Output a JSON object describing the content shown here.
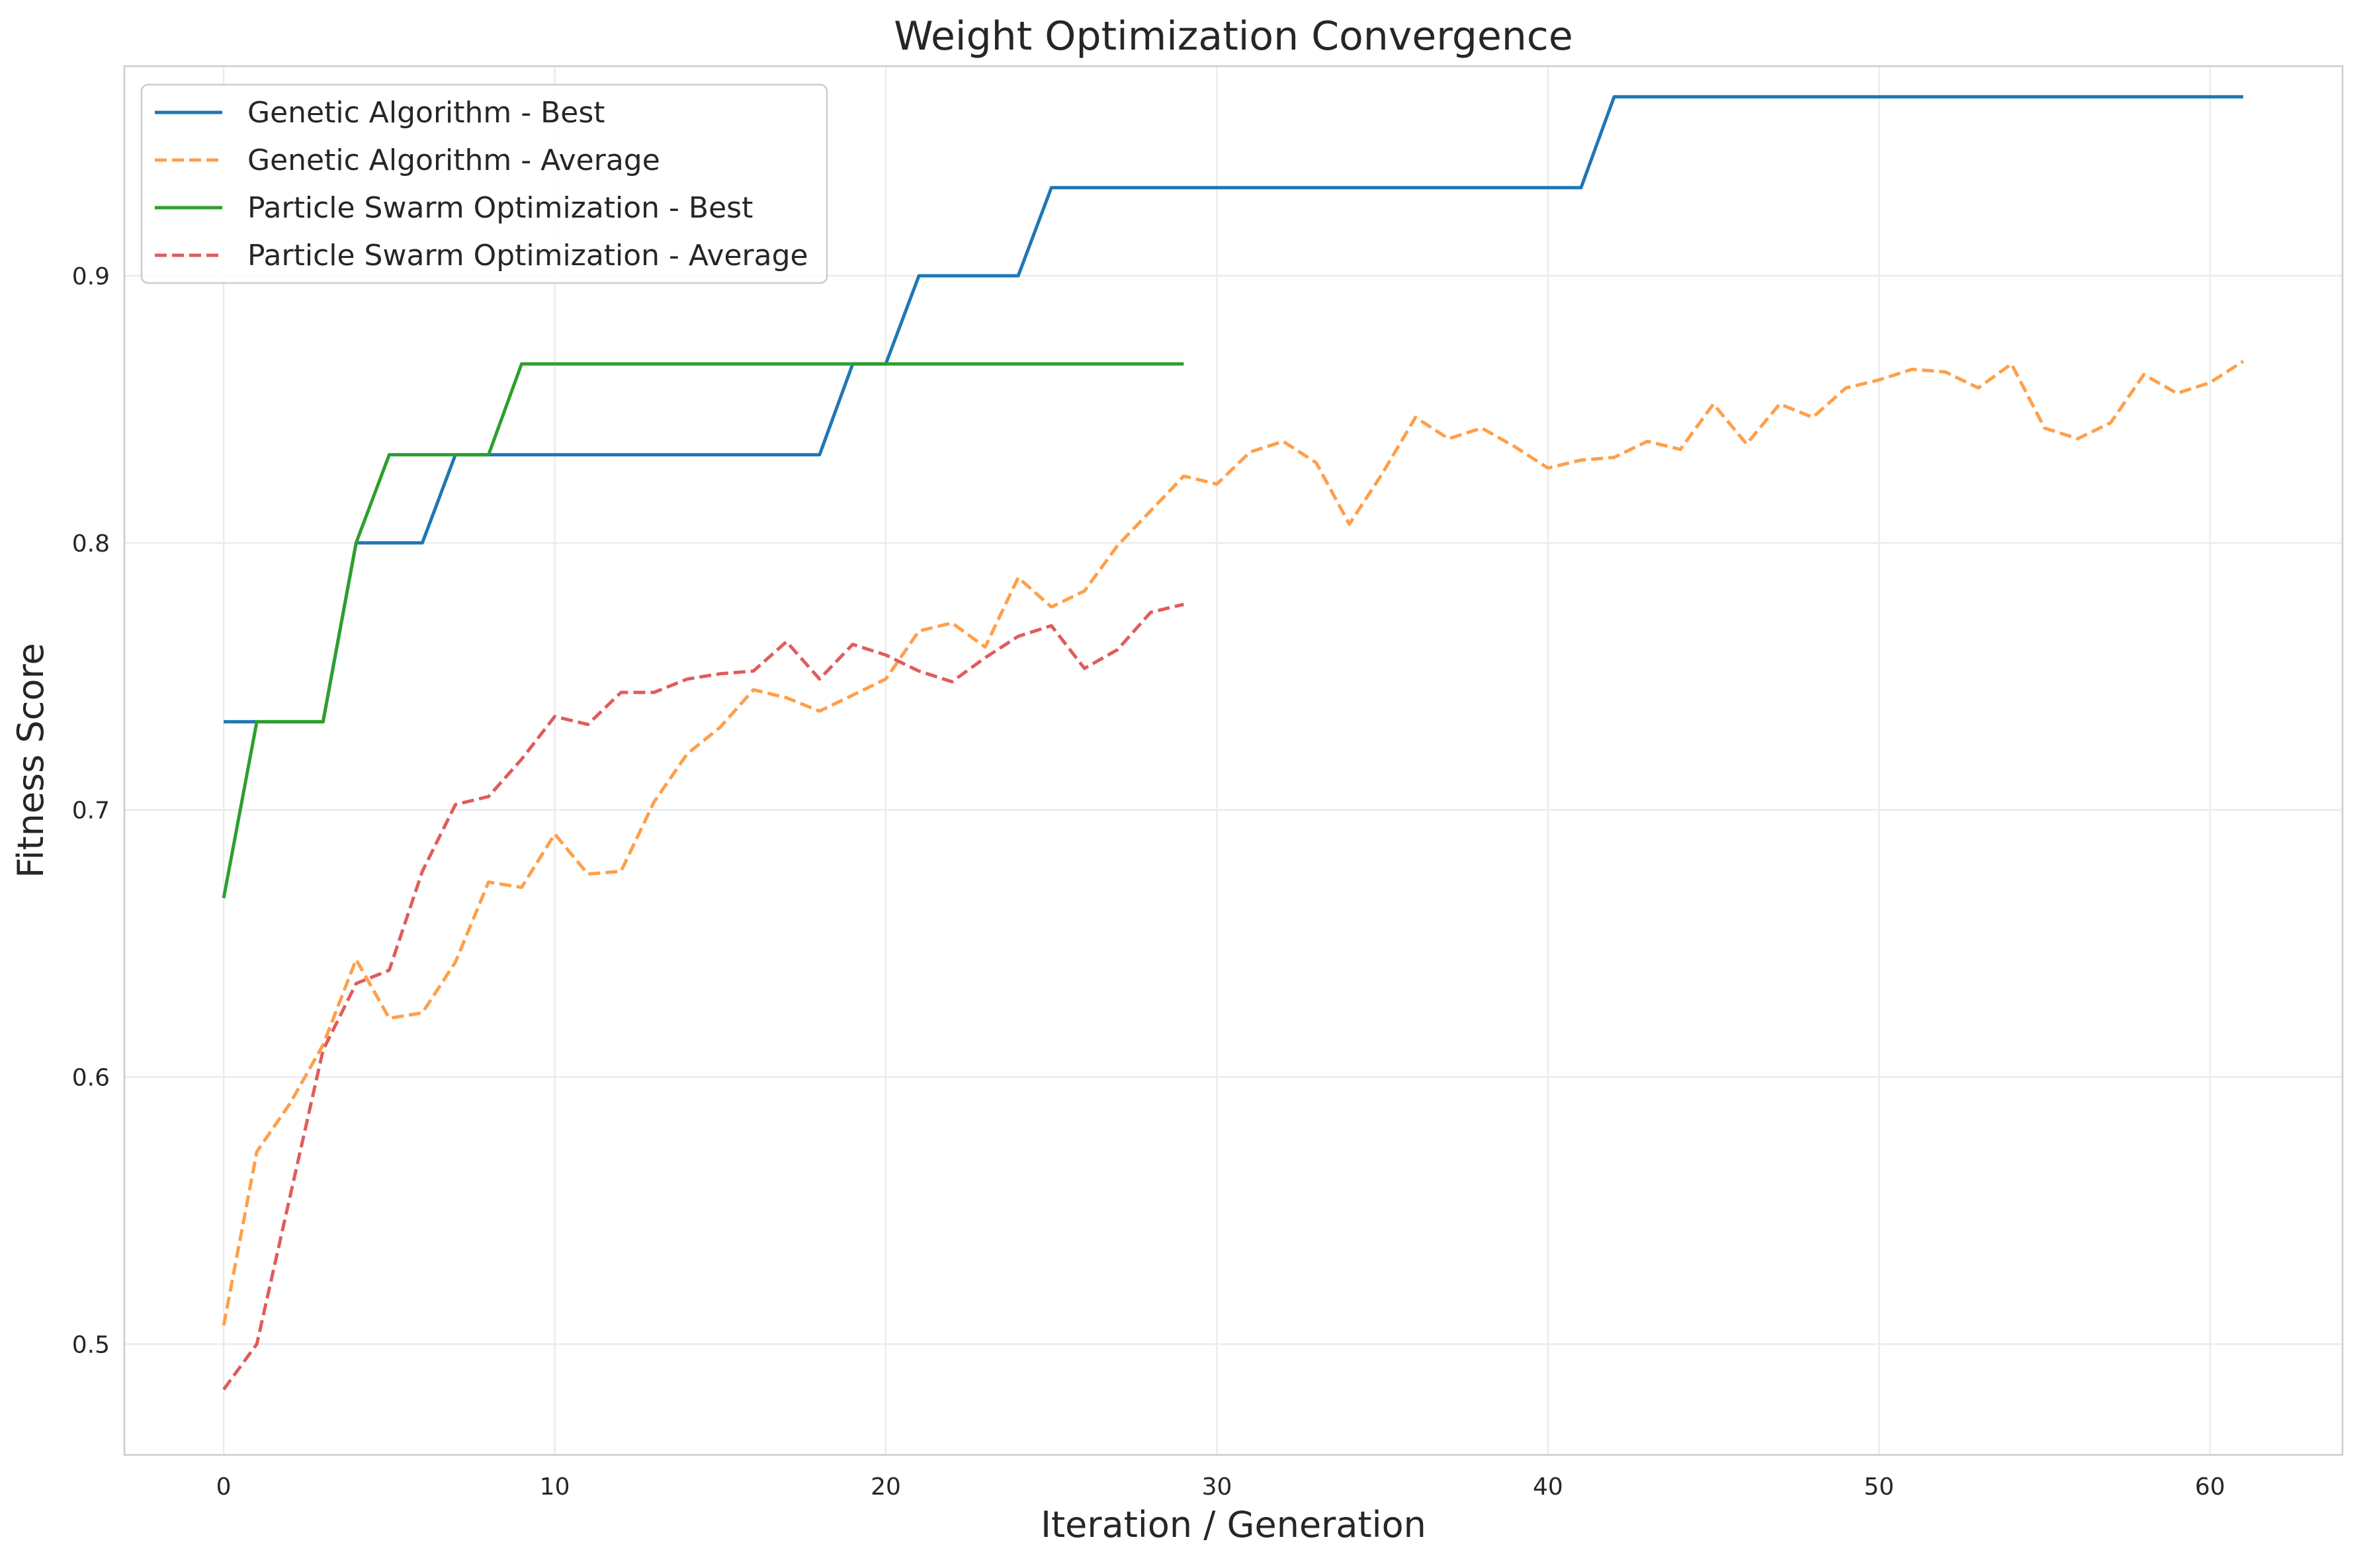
{
  "chart_data": {
    "type": "line",
    "title": "Weight Optimization Convergence",
    "xlabel": "Iteration / Generation",
    "ylabel": "Fitness Score",
    "xlim": [
      -3,
      64
    ],
    "ylim": [
      0.4585,
      0.9785
    ],
    "xticks": [
      0,
      10,
      20,
      30,
      40,
      50,
      60
    ],
    "yticks": [
      0.5,
      0.6,
      0.7,
      0.8,
      0.9
    ],
    "grid": true,
    "legend_position": "upper-left",
    "series": [
      {
        "name": "Genetic Algorithm - Best",
        "color": "#1f77b4",
        "style": "solid",
        "x": [
          0,
          1,
          2,
          3,
          4,
          5,
          6,
          7,
          8,
          9,
          10,
          11,
          12,
          13,
          14,
          15,
          16,
          17,
          18,
          19,
          20,
          21,
          22,
          23,
          24,
          25,
          26,
          27,
          28,
          29,
          30,
          31,
          32,
          33,
          34,
          35,
          36,
          37,
          38,
          39,
          40,
          41,
          42,
          43,
          44,
          45,
          46,
          47,
          48,
          49,
          50,
          51,
          52,
          53,
          54,
          55,
          56,
          57,
          58,
          59,
          60,
          61
        ],
        "y": [
          0.733,
          0.733,
          0.733,
          0.733,
          0.8,
          0.8,
          0.8,
          0.833,
          0.833,
          0.833,
          0.833,
          0.833,
          0.833,
          0.833,
          0.833,
          0.833,
          0.833,
          0.833,
          0.833,
          0.867,
          0.867,
          0.9,
          0.9,
          0.9,
          0.9,
          0.933,
          0.933,
          0.933,
          0.933,
          0.933,
          0.933,
          0.933,
          0.933,
          0.933,
          0.933,
          0.933,
          0.933,
          0.933,
          0.933,
          0.933,
          0.933,
          0.933,
          0.967,
          0.967,
          0.967,
          0.967,
          0.967,
          0.967,
          0.967,
          0.967,
          0.967,
          0.967,
          0.967,
          0.967,
          0.967,
          0.967,
          0.967,
          0.967,
          0.967,
          0.967,
          0.967,
          0.967
        ]
      },
      {
        "name": "Genetic Algorithm - Average",
        "color": "#ff9f4a",
        "style": "dashed",
        "x": [
          0,
          1,
          2,
          3,
          4,
          5,
          6,
          7,
          8,
          9,
          10,
          11,
          12,
          13,
          14,
          15,
          16,
          17,
          18,
          19,
          20,
          21,
          22,
          23,
          24,
          25,
          26,
          27,
          28,
          29,
          30,
          31,
          32,
          33,
          34,
          35,
          36,
          37,
          38,
          39,
          40,
          41,
          42,
          43,
          44,
          45,
          46,
          47,
          48,
          49,
          50,
          51,
          52,
          53,
          54,
          55,
          56,
          57,
          58,
          59,
          60,
          61
        ],
        "y": [
          0.507,
          0.572,
          0.59,
          0.612,
          0.644,
          0.622,
          0.624,
          0.643,
          0.673,
          0.671,
          0.691,
          0.676,
          0.677,
          0.703,
          0.721,
          0.731,
          0.745,
          0.742,
          0.737,
          0.743,
          0.749,
          0.767,
          0.77,
          0.761,
          0.787,
          0.776,
          0.782,
          0.799,
          0.812,
          0.825,
          0.822,
          0.834,
          0.838,
          0.83,
          0.807,
          0.826,
          0.847,
          0.839,
          0.843,
          0.836,
          0.828,
          0.831,
          0.832,
          0.838,
          0.835,
          0.852,
          0.837,
          0.852,
          0.847,
          0.858,
          0.861,
          0.865,
          0.864,
          0.858,
          0.867,
          0.843,
          0.839,
          0.845,
          0.863,
          0.856,
          0.86,
          0.868
        ]
      },
      {
        "name": "Particle Swarm Optimization - Best",
        "color": "#2ca02c",
        "style": "solid",
        "x": [
          0,
          1,
          2,
          3,
          4,
          5,
          6,
          7,
          8,
          9,
          10,
          11,
          12,
          13,
          14,
          15,
          16,
          17,
          18,
          19,
          20,
          21,
          22,
          23,
          24,
          25,
          26,
          27,
          28,
          29
        ],
        "y": [
          0.667,
          0.733,
          0.733,
          0.733,
          0.8,
          0.833,
          0.833,
          0.833,
          0.833,
          0.867,
          0.867,
          0.867,
          0.867,
          0.867,
          0.867,
          0.867,
          0.867,
          0.867,
          0.867,
          0.867,
          0.867,
          0.867,
          0.867,
          0.867,
          0.867,
          0.867,
          0.867,
          0.867,
          0.867,
          0.867
        ]
      },
      {
        "name": "Particle Swarm Optimization - Average",
        "color": "#e05c5c",
        "style": "dashed",
        "x": [
          0,
          1,
          2,
          3,
          4,
          5,
          6,
          7,
          8,
          9,
          10,
          11,
          12,
          13,
          14,
          15,
          16,
          17,
          18,
          19,
          20,
          21,
          22,
          23,
          24,
          25,
          26,
          27,
          28,
          29
        ],
        "y": [
          0.483,
          0.5,
          0.555,
          0.61,
          0.635,
          0.64,
          0.677,
          0.702,
          0.705,
          0.719,
          0.735,
          0.732,
          0.744,
          0.744,
          0.749,
          0.751,
          0.752,
          0.763,
          0.749,
          0.762,
          0.758,
          0.752,
          0.748,
          0.757,
          0.765,
          0.769,
          0.753,
          0.76,
          0.774,
          0.777
        ]
      }
    ]
  }
}
